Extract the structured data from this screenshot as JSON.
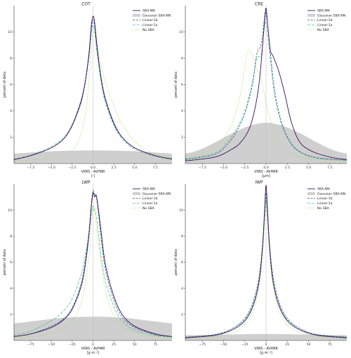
{
  "styles": {
    "SBA-NN": {
      "color": "#3b0f55",
      "dash": "",
      "width": 0.9
    },
    "Linear-1b": {
      "color": "#2f5d8a",
      "dash": "3,1.6",
      "width": 0.8
    },
    "Linear-1a": {
      "color": "#3fb58a",
      "dash": "3,1.2,0.8,1.2",
      "width": 0.8
    },
    "No SBA": {
      "color": "#a6dc5a",
      "dash": "0.9,1.1",
      "width": 0.8
    },
    "Gaussian SBA-NN": {
      "color": "#cfcfcf"
    }
  },
  "chart_data": [
    {
      "type": "line",
      "title": "COT",
      "xlabel": "VIIRS - AVHRR",
      "xlabel2": "[-]",
      "ylabel": "percent of data",
      "xlim": [
        -9.5,
        9.5
      ],
      "ylim": [
        0,
        12
      ],
      "xticks": [
        -7.5,
        -5.0,
        -2.5,
        0.0,
        2.5,
        5.0,
        7.5
      ],
      "xtick_labels": [
        "−7.5",
        "−5.0",
        "−2.5",
        "0.0",
        "2.5",
        "5.0",
        "7.5"
      ],
      "yticks": [
        2,
        4,
        6,
        8,
        10
      ],
      "legend": [
        "SBA-NN",
        "Gaussian SBA-NN",
        "Linear-1b",
        "Linear-1a",
        "No SBA"
      ],
      "gaussian": {
        "name": "Gaussian SBA-NN",
        "x": [
          -9.5,
          -6,
          -3,
          0,
          3,
          6,
          9.5
        ],
        "y": [
          0.75,
          0.9,
          0.97,
          1.0,
          0.97,
          0.9,
          0.75
        ]
      },
      "series": [
        {
          "name": "SBA-NN",
          "x": [
            -9.5,
            -7.5,
            -5,
            -3.5,
            -2.5,
            -1.5,
            -1,
            -0.5,
            -0.2,
            0,
            0.2,
            0.5,
            1,
            1.5,
            2.5,
            3.5,
            5,
            7.5,
            9.5
          ],
          "y": [
            0.3,
            0.6,
            1.2,
            1.9,
            2.9,
            4.6,
            6.0,
            8.3,
            10.5,
            11.2,
            10.7,
            8.8,
            6.4,
            4.9,
            3.1,
            2.0,
            1.2,
            0.6,
            0.35
          ]
        },
        {
          "name": "Linear-1b",
          "x": [
            -9.5,
            -7.5,
            -5,
            -3.5,
            -2.5,
            -1.5,
            -1,
            -0.5,
            -0.2,
            0,
            0.2,
            0.5,
            1,
            1.5,
            2.5,
            3.5,
            5,
            7.5,
            9.5
          ],
          "y": [
            0.3,
            0.6,
            1.2,
            1.9,
            2.9,
            4.5,
            5.9,
            8.1,
            10.2,
            10.9,
            10.4,
            8.6,
            6.3,
            4.8,
            3.0,
            2.0,
            1.2,
            0.6,
            0.35
          ]
        },
        {
          "name": "Linear-1a",
          "x": [
            -9.5,
            -7.5,
            -5,
            -3.5,
            -2.5,
            -1.5,
            -1,
            -0.5,
            -0.2,
            0,
            0.2,
            0.5,
            1,
            1.5,
            2.5,
            3.5,
            5,
            7.5,
            9.5
          ],
          "y": [
            0.35,
            0.65,
            1.3,
            2.0,
            3.0,
            4.7,
            6.0,
            8.0,
            9.9,
            10.5,
            10.0,
            8.3,
            6.1,
            4.6,
            2.9,
            1.9,
            1.1,
            0.55,
            0.3
          ]
        },
        {
          "name": "No SBA",
          "x": [
            -9.5,
            -5,
            -3,
            -2,
            -1.3,
            -0.8,
            -0.4,
            0,
            0.4,
            0.8,
            1.3,
            2,
            3,
            4,
            5,
            6.5,
            8,
            9.5
          ],
          "y": [
            0.2,
            0.4,
            0.8,
            1.4,
            2.6,
            4.3,
            7.0,
            10.0,
            9.5,
            8.0,
            6.6,
            5.2,
            3.6,
            2.5,
            1.7,
            1.0,
            0.6,
            0.4
          ]
        }
      ]
    },
    {
      "type": "line",
      "title": "CRE",
      "xlabel": "VIIRS - AVHRR",
      "xlabel2": "[μm]",
      "ylabel": "percent of data",
      "xlim": [
        -9.5,
        9.5
      ],
      "ylim": [
        0,
        12
      ],
      "xticks": [
        -7.5,
        -5.0,
        -2.5,
        0.0,
        2.5,
        5.0,
        7.5
      ],
      "xtick_labels": [
        "−7.5",
        "−5.0",
        "−2.5",
        "0.0",
        "2.5",
        "5.0",
        "7.5"
      ],
      "yticks": [
        2,
        4,
        6,
        8,
        10
      ],
      "legend": [
        "SBA-NN",
        "Gaussian SBA-NN",
        "Linear-1b",
        "Linear-1a",
        "No SBA"
      ],
      "gaussian": {
        "name": "Gaussian SBA-NN",
        "x": [
          -9.5,
          -8,
          -6,
          -4,
          -2,
          0,
          2,
          4,
          6,
          8,
          9.5
        ],
        "y": [
          0.75,
          1.0,
          1.6,
          2.3,
          2.85,
          3.1,
          2.85,
          2.3,
          1.6,
          1.0,
          0.75
        ]
      },
      "series": [
        {
          "name": "SBA-NN",
          "x": [
            -9.5,
            -6,
            -4,
            -3,
            -2,
            -1.3,
            -0.8,
            -0.4,
            -0.15,
            0,
            0.2,
            0.5,
            0.8,
            1.5,
            2.2,
            3,
            4,
            5.5,
            7.5,
            9.5
          ],
          "y": [
            0.2,
            0.5,
            1.1,
            1.6,
            2.6,
            4.2,
            6.2,
            9.0,
            11.0,
            11.8,
            10.5,
            8.6,
            8.2,
            7.0,
            5.3,
            3.1,
            1.6,
            0.9,
            0.5,
            0.3
          ]
        },
        {
          "name": "Linear-1b",
          "x": [
            -9.5,
            -6,
            -4.5,
            -3.5,
            -2.5,
            -1.6,
            -1.1,
            -0.6,
            -0.3,
            -0.1,
            0.1,
            0.5,
            1,
            1.8,
            2.8,
            4,
            6,
            9.5
          ],
          "y": [
            0.3,
            0.7,
            1.5,
            2.4,
            3.8,
            6.0,
            8.3,
            9.0,
            10.4,
            11.5,
            11.0,
            8.5,
            5.6,
            3.2,
            1.7,
            0.9,
            0.45,
            0.25
          ]
        },
        {
          "name": "Linear-1a",
          "x": [
            -9.5,
            -6,
            -4.5,
            -3.5,
            -2.5,
            -1.6,
            -1.1,
            -0.6,
            -0.3,
            -0.1,
            0.1,
            0.5,
            1,
            1.8,
            2.8,
            4,
            6,
            9.5
          ],
          "y": [
            0.35,
            0.8,
            1.7,
            2.6,
            4.0,
            6.2,
            8.0,
            8.2,
            9.8,
            10.8,
            10.2,
            7.9,
            5.2,
            3.0,
            1.6,
            0.85,
            0.4,
            0.25
          ]
        },
        {
          "name": "No SBA",
          "x": [
            -9.5,
            -6,
            -4.5,
            -3.5,
            -2.8,
            -2.2,
            -1.7,
            -1.2,
            -0.7,
            -0.3,
            0,
            0.4,
            1,
            1.6,
            2.5,
            4,
            6,
            9.5
          ],
          "y": [
            0.4,
            1.2,
            2.4,
            4.0,
            6.0,
            8.5,
            8.3,
            7.4,
            6.6,
            5.6,
            4.6,
            3.6,
            2.4,
            1.6,
            1.0,
            0.5,
            0.3,
            0.2
          ]
        }
      ]
    },
    {
      "type": "line",
      "title": "LWP",
      "xlabel": "VIIRS - AVHRR",
      "xlabel2": "[g m⁻²]",
      "ylabel": "percent of data",
      "xlim": [
        -95,
        95
      ],
      "ylim": [
        0,
        12
      ],
      "xticks": [
        -75,
        -50,
        -25,
        0,
        25,
        50,
        75
      ],
      "xtick_labels": [
        "−75",
        "−50",
        "−25",
        "0",
        "25",
        "50",
        "75"
      ],
      "yticks": [
        2,
        4,
        6,
        8,
        10
      ],
      "legend": [
        "SBA-NN",
        "Gaussian SBA-NN",
        "Linear-1b",
        "Linear-1a",
        "No SBA"
      ],
      "gaussian": {
        "name": "Gaussian SBA-NN",
        "x": [
          -95,
          -75,
          -50,
          -25,
          0,
          25,
          50,
          75,
          95
        ],
        "y": [
          1.3,
          1.45,
          1.65,
          1.78,
          1.82,
          1.78,
          1.65,
          1.45,
          1.3
        ]
      },
      "series": [
        {
          "name": "SBA-NN",
          "x": [
            -95,
            -75,
            -50,
            -35,
            -25,
            -15,
            -10,
            -5,
            -2,
            0,
            2,
            4,
            7,
            10,
            15,
            25,
            35,
            50,
            75,
            95
          ],
          "y": [
            0.3,
            0.5,
            1.0,
            1.6,
            2.4,
            4.0,
            5.5,
            8.0,
            10.3,
            11.3,
            11.0,
            11.1,
            9.8,
            8.2,
            5.8,
            3.4,
            2.0,
            1.1,
            0.5,
            0.3
          ]
        },
        {
          "name": "Linear-1b",
          "x": [
            -95,
            -75,
            -50,
            -35,
            -25,
            -15,
            -10,
            -5,
            -2,
            0,
            2,
            4,
            7,
            10,
            15,
            25,
            35,
            50,
            75,
            95
          ],
          "y": [
            0.3,
            0.5,
            1.1,
            1.7,
            2.5,
            4.2,
            5.8,
            8.3,
            10.5,
            11.5,
            11.2,
            11.0,
            9.5,
            7.7,
            5.4,
            3.1,
            1.8,
            1.0,
            0.45,
            0.3
          ]
        },
        {
          "name": "Linear-1a",
          "x": [
            -95,
            -75,
            -50,
            -35,
            -25,
            -15,
            -10,
            -5,
            -2,
            0,
            2,
            4,
            7,
            10,
            15,
            25,
            35,
            50,
            75,
            95
          ],
          "y": [
            0.4,
            0.7,
            1.5,
            2.3,
            3.2,
            4.9,
            6.3,
            8.1,
            9.7,
            10.3,
            10.0,
            9.5,
            8.0,
            6.4,
            4.5,
            2.6,
            1.5,
            0.8,
            0.4,
            0.25
          ]
        },
        {
          "name": "No SBA",
          "x": [
            -95,
            -60,
            -40,
            -28,
            -20,
            -12,
            -7,
            -3,
            -1,
            0,
            1,
            3,
            6,
            10,
            15,
            22,
            30,
            45,
            70,
            95
          ],
          "y": [
            0.2,
            0.4,
            0.8,
            1.3,
            2.0,
            3.4,
            5.3,
            7.8,
            9.6,
            10.3,
            10.1,
            9.2,
            7.8,
            5.8,
            3.8,
            2.3,
            1.4,
            0.7,
            0.35,
            0.2
          ]
        }
      ]
    },
    {
      "type": "line",
      "title": "IWP",
      "xlabel": "VIIRS - AVHRR",
      "xlabel2": "[g m⁻²]",
      "ylabel": "percent of data",
      "xlim": [
        -95,
        95
      ],
      "ylim": [
        0,
        12
      ],
      "xticks": [
        -75,
        -50,
        -25,
        0,
        25,
        50,
        75
      ],
      "xtick_labels": [
        "−75",
        "−50",
        "−25",
        "0",
        "25",
        "50",
        "75"
      ],
      "yticks": [
        2,
        4,
        6,
        8,
        10
      ],
      "legend": [
        "SBA-NN",
        "Gaussian SBA-NN",
        "Linear-1b",
        "Linear-1a",
        "No SBA"
      ],
      "gaussian": {
        "name": "Gaussian SBA-NN",
        "x": [
          -95,
          -50,
          -25,
          0,
          25,
          50,
          95
        ],
        "y": [
          0.4,
          0.45,
          0.48,
          0.5,
          0.48,
          0.45,
          0.4
        ]
      },
      "series": [
        {
          "name": "SBA-NN",
          "x": [
            -95,
            -60,
            -40,
            -25,
            -15,
            -8,
            -4,
            -1.5,
            0,
            1.5,
            4,
            8,
            15,
            25,
            40,
            60,
            95
          ],
          "y": [
            0.2,
            0.4,
            0.8,
            1.5,
            2.7,
            4.6,
            7.3,
            10.3,
            11.9,
            10.3,
            7.3,
            4.6,
            2.7,
            1.5,
            0.8,
            0.4,
            0.2
          ]
        },
        {
          "name": "Linear-1b",
          "x": [
            -95,
            -60,
            -40,
            -25,
            -15,
            -8,
            -4,
            -1.5,
            0,
            1.5,
            4,
            8,
            15,
            25,
            40,
            60,
            95
          ],
          "y": [
            0.25,
            0.45,
            0.9,
            1.7,
            3.0,
            5.0,
            7.5,
            10.0,
            11.3,
            10.0,
            7.5,
            5.0,
            3.0,
            1.7,
            0.9,
            0.45,
            0.25
          ]
        },
        {
          "name": "Linear-1a",
          "x": [
            -95,
            -60,
            -40,
            -25,
            -15,
            -8,
            -4,
            -1.5,
            0,
            1.5,
            4,
            8,
            15,
            25,
            40,
            60,
            95
          ],
          "y": [
            0.25,
            0.45,
            0.9,
            1.6,
            2.8,
            4.7,
            7.1,
            9.6,
            10.9,
            9.6,
            7.1,
            4.7,
            2.8,
            1.6,
            0.9,
            0.45,
            0.25
          ]
        },
        {
          "name": "No SBA",
          "x": [
            -95,
            -60,
            -40,
            -25,
            -15,
            -8,
            -4,
            -1.5,
            0,
            1.5,
            4,
            8,
            15,
            25,
            40,
            60,
            95
          ],
          "y": [
            0.15,
            0.3,
            0.6,
            1.2,
            2.3,
            4.2,
            6.8,
            9.2,
            10.4,
            9.2,
            6.8,
            4.2,
            2.3,
            1.2,
            0.6,
            0.3,
            0.15
          ]
        }
      ]
    }
  ]
}
